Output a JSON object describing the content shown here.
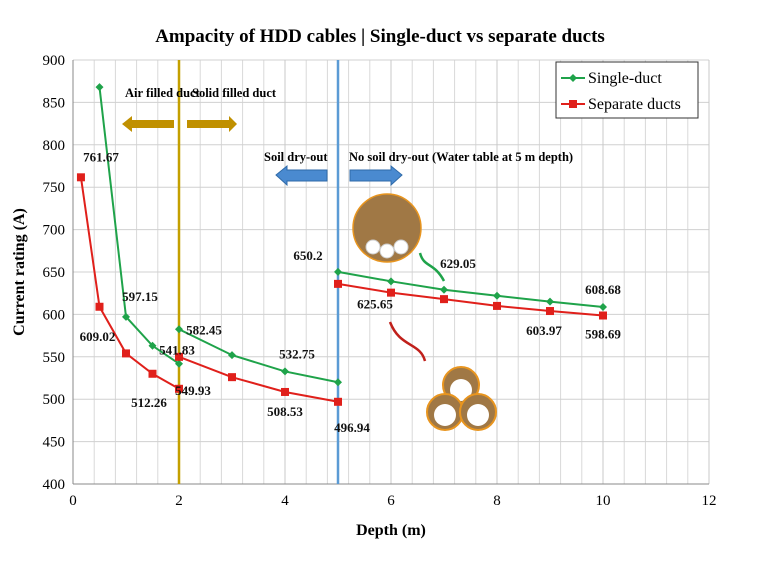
{
  "chart_data": {
    "type": "line",
    "title": "Ampacity of HDD cables | Single-duct vs separate ducts",
    "xlabel": "Depth (m)",
    "ylabel": "Current rating (A)",
    "xlim": [
      0,
      12
    ],
    "ylim": [
      400,
      900
    ],
    "xticks": [
      0,
      2,
      4,
      6,
      8,
      10,
      12
    ],
    "yticks": [
      400,
      450,
      500,
      550,
      600,
      650,
      700,
      750,
      800,
      850,
      900
    ],
    "grid": true,
    "legend": "top-right",
    "series": [
      {
        "name": "Single-duct",
        "color": "#1fa34a",
        "marker": "diamond",
        "segments": [
          [
            [
              0.5,
              868
            ],
            [
              1,
              597.15
            ],
            [
              1.5,
              563
            ],
            [
              2,
              541.83
            ]
          ],
          [
            [
              2,
              582.45
            ],
            [
              3,
              552
            ],
            [
              4,
              532.75
            ],
            [
              5,
              520
            ]
          ],
          [
            [
              5,
              650.2
            ],
            [
              6,
              639
            ],
            [
              7,
              629.05
            ],
            [
              8,
              622
            ],
            [
              9,
              615
            ],
            [
              10,
              608.68
            ]
          ]
        ]
      },
      {
        "name": "Separate ducts",
        "color": "#e0201b",
        "marker": "square",
        "segments": [
          [
            [
              0.15,
              761.67
            ],
            [
              0.5,
              609.02
            ],
            [
              1,
              554
            ],
            [
              1.5,
              530
            ],
            [
              2,
              512.26
            ]
          ],
          [
            [
              2,
              549.93
            ],
            [
              3,
              526
            ],
            [
              4,
              508.53
            ],
            [
              5,
              496.94
            ]
          ],
          [
            [
              5,
              636
            ],
            [
              6,
              625.65
            ],
            [
              7,
              618
            ],
            [
              8,
              610
            ],
            [
              9,
              603.97
            ],
            [
              10,
              598.69
            ]
          ]
        ]
      }
    ],
    "data_labels": [
      {
        "text": "761.67",
        "x": 0.15,
        "y": 761.67
      },
      {
        "text": "609.02",
        "x": 0.5,
        "y": 609.02
      },
      {
        "text": "597.15",
        "x": 1,
        "y": 597.15
      },
      {
        "text": "541.83",
        "x": 2,
        "y": 541.83
      },
      {
        "text": "582.45",
        "x": 2,
        "y": 582.45
      },
      {
        "text": "549.93",
        "x": 2,
        "y": 549.93
      },
      {
        "text": "512.26",
        "x": 2,
        "y": 512.26
      },
      {
        "text": "532.75",
        "x": 4,
        "y": 532.75
      },
      {
        "text": "508.53",
        "x": 4,
        "y": 508.53
      },
      {
        "text": "496.94",
        "x": 5,
        "y": 496.94
      },
      {
        "text": "650.2",
        "x": 5,
        "y": 650.2
      },
      {
        "text": "625.65",
        "x": 6,
        "y": 625.65
      },
      {
        "text": "629.05",
        "x": 7,
        "y": 629.05
      },
      {
        "text": "603.97",
        "x": 9,
        "y": 603.97
      },
      {
        "text": "608.68",
        "x": 10,
        "y": 608.68
      },
      {
        "text": "598.69",
        "x": 10,
        "y": 598.69
      }
    ],
    "reference_lines": [
      {
        "x": 2,
        "color": "#c4a000"
      },
      {
        "x": 5,
        "color": "#5b9bd5"
      }
    ],
    "annotations": {
      "air_filled": "Air filled duct",
      "solid_filled": "Solid filled duct",
      "soil_dry_out": "Soil dry-out",
      "no_soil_dry_out": "No soil dry-out (Water table at 5 m depth)"
    },
    "colors": {
      "gold_arrow": "#c09000",
      "blue_arrow": "#4a8ad0",
      "cable_brown": "#a07845",
      "cable_orange": "#e8951f"
    }
  }
}
